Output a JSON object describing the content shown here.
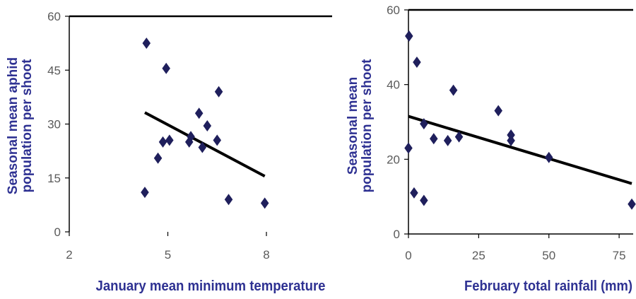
{
  "chart_data": [
    {
      "type": "scatter",
      "title": "",
      "xlabel": "January mean minimum temperature",
      "ylabel_lines": [
        "Seasonal mean aphid",
        "population per shoot"
      ],
      "xlim": [
        2,
        10
      ],
      "ylim": [
        0,
        60
      ],
      "x_ticks": [
        2,
        5,
        8
      ],
      "y_ticks": [
        0,
        15,
        30,
        45,
        60
      ],
      "marker_color": "#1f1f5c",
      "label_color": "#2e3192",
      "trendline_color": "#000000",
      "grid": false,
      "points": [
        {
          "x": 4.3,
          "y": 11
        },
        {
          "x": 4.35,
          "y": 52.5
        },
        {
          "x": 4.7,
          "y": 20.5
        },
        {
          "x": 4.85,
          "y": 25
        },
        {
          "x": 4.95,
          "y": 45.5
        },
        {
          "x": 5.05,
          "y": 25.5
        },
        {
          "x": 5.65,
          "y": 25
        },
        {
          "x": 5.7,
          "y": 26.5
        },
        {
          "x": 5.95,
          "y": 33
        },
        {
          "x": 6.05,
          "y": 23.5
        },
        {
          "x": 6.2,
          "y": 29.5
        },
        {
          "x": 6.5,
          "y": 25.5
        },
        {
          "x": 6.55,
          "y": 39
        },
        {
          "x": 6.85,
          "y": 9
        },
        {
          "x": 7.95,
          "y": 8
        }
      ],
      "trendline": {
        "x": [
          4.3,
          7.95
        ],
        "y": [
          33.2,
          15.5
        ]
      }
    },
    {
      "type": "scatter",
      "title": "",
      "xlabel": "February total rainfall (mm)",
      "ylabel_lines": [
        "Seasonal mean",
        "population per shoot"
      ],
      "xlim": [
        0,
        80
      ],
      "ylim": [
        0,
        60
      ],
      "x_ticks": [
        0,
        25,
        50,
        75
      ],
      "y_ticks": [
        0,
        20,
        40,
        60
      ],
      "marker_color": "#1f1f5c",
      "label_color": "#2e3192",
      "trendline_color": "#000000",
      "grid": false,
      "points": [
        {
          "x": 0,
          "y": 23
        },
        {
          "x": 0.2,
          "y": 53
        },
        {
          "x": 2,
          "y": 11
        },
        {
          "x": 3,
          "y": 46
        },
        {
          "x": 5.5,
          "y": 9
        },
        {
          "x": 5.5,
          "y": 29.5
        },
        {
          "x": 9,
          "y": 25.5
        },
        {
          "x": 14,
          "y": 25
        },
        {
          "x": 16,
          "y": 38.5
        },
        {
          "x": 18,
          "y": 26
        },
        {
          "x": 32,
          "y": 33
        },
        {
          "x": 36.5,
          "y": 25
        },
        {
          "x": 36.5,
          "y": 26.5
        },
        {
          "x": 50,
          "y": 20.5
        },
        {
          "x": 79.5,
          "y": 8
        }
      ],
      "trendline": {
        "x": [
          0,
          79.5
        ],
        "y": [
          31.5,
          13.5
        ]
      }
    }
  ]
}
